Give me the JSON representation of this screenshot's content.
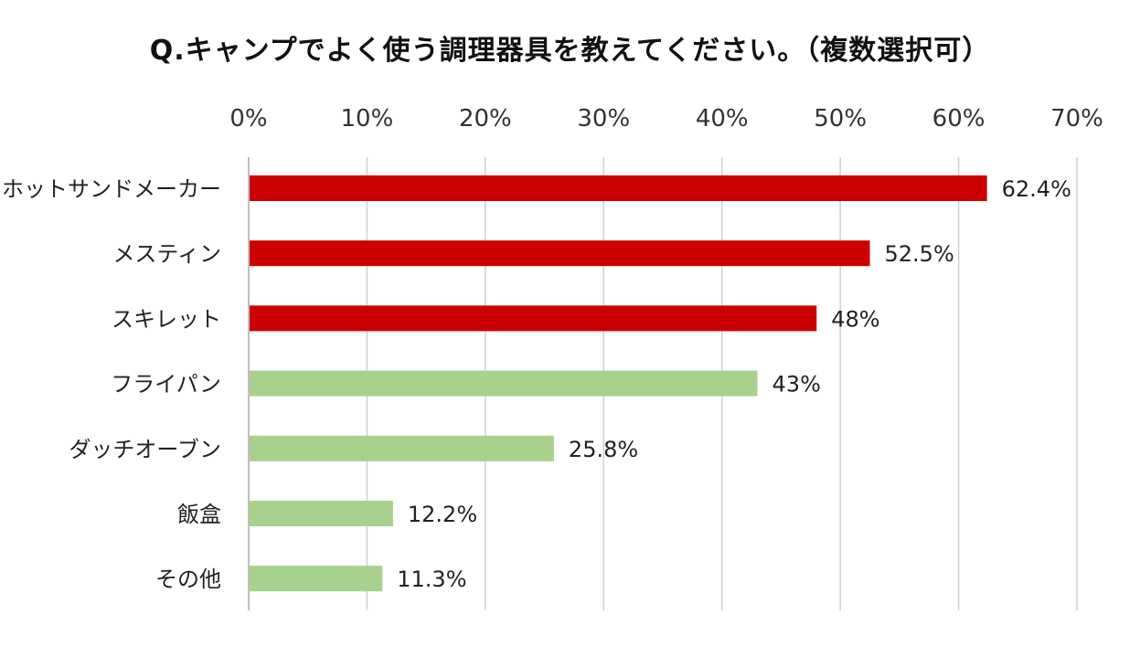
{
  "chart_data": {
    "type": "bar",
    "orientation": "horizontal",
    "title": "Q.キャンプでよく使う調理器具を教えてください。（複数選択可）",
    "categories": [
      "ホットサンドメーカー",
      "メスティン",
      "スキレット",
      "フライパン",
      "ダッチオーブン",
      "飯盒",
      "その他"
    ],
    "values": [
      62.4,
      52.5,
      48,
      43,
      25.8,
      12.2,
      11.3
    ],
    "value_labels": [
      "62.4%",
      "52.5%",
      "48%",
      "43%",
      "25.8%",
      "12.2%",
      "11.3%"
    ],
    "bar_colors": [
      "#cc0000",
      "#cc0000",
      "#cc0000",
      "#a9d18e",
      "#a9d18e",
      "#a9d18e",
      "#a9d18e"
    ],
    "x_ticks": [
      "0%",
      "10%",
      "20%",
      "30%",
      "40%",
      "50%",
      "60%",
      "70%"
    ],
    "xlim": [
      0,
      70
    ],
    "x_axis_position": "top",
    "grid": true,
    "grid_color": "#d0d0d0",
    "xlabel": "",
    "ylabel": ""
  }
}
